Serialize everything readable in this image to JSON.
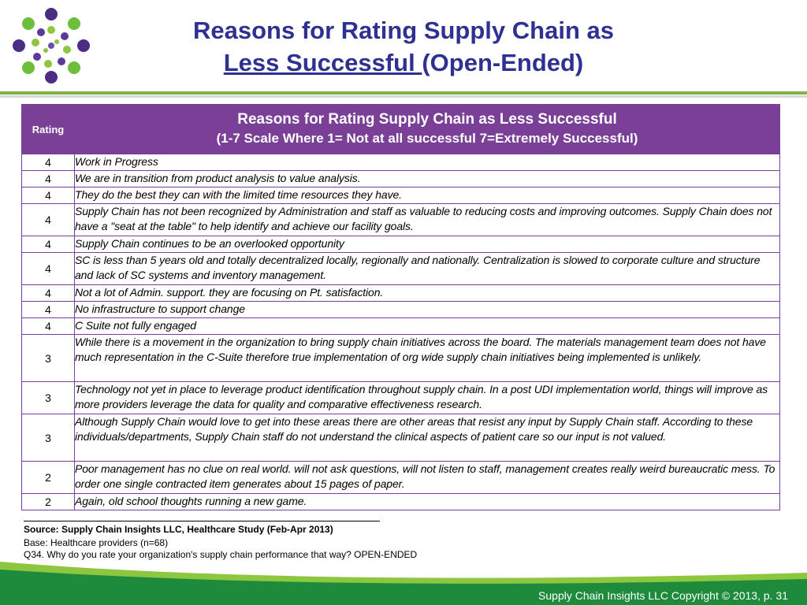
{
  "title": {
    "line1": "Reasons for Rating Supply Chain as",
    "line2_underlined": "Less Successful ",
    "line2_rest": "(Open-Ended)"
  },
  "table": {
    "header_rating": "Rating",
    "header_title": "Reasons for Rating Supply Chain as Less Successful",
    "header_subtitle": "(1-7 Scale Where 1= Not at all successful 7=Extremely Successful)",
    "rows": [
      {
        "rating": "4",
        "text": "Work in Progress"
      },
      {
        "rating": "4",
        "text": "We are in transition from product analysis to value analysis."
      },
      {
        "rating": "4",
        "text": "They do the best they can with the limited time resources they have."
      },
      {
        "rating": "4",
        "text": "Supply Chain has not been recognized by Administration and staff as valuable to reducing costs and improving outcomes. Supply Chain does not have a \"seat at the table\" to help identify and achieve our facility goals."
      },
      {
        "rating": "4",
        "text": "Supply Chain continues to be an overlooked opportunity"
      },
      {
        "rating": "4",
        "text": "SC is less than 5 years old and totally decentralized locally, regionally and nationally.  Centralization is slowed to corporate culture and structure and lack of SC systems and inventory management."
      },
      {
        "rating": "4",
        "text": "Not a lot of Admin. support.  they are focusing on Pt. satisfaction."
      },
      {
        "rating": "4",
        "text": "No infrastructure to support change"
      },
      {
        "rating": "4",
        "text": "C Suite not fully engaged"
      },
      {
        "rating": "3",
        "text": "While there is a movement in the organization to bring supply chain initiatives across the board. The materials management team does not have much representation in the C-Suite therefore true implementation of org wide supply chain initiatives being implemented is unlikely."
      },
      {
        "rating": "3",
        "text": "Technology not yet in place to leverage product identification throughout supply chain. In a post UDI implementation world, things will improve as more providers leverage the data for quality and comparative effectiveness research."
      },
      {
        "rating": "3",
        "text": "Although Supply Chain would love to get into these areas there are other areas that resist any input by Supply Chain staff. According to these individuals/departments, Supply Chain staff do not understand the clinical aspects of patient care so our input is not valued."
      },
      {
        "rating": "2",
        "text": "Poor management has no clue on real world.  will not ask questions, will not listen to staff, management creates really weird bureaucratic mess.  To order one single  contracted item generates about 15 pages of paper."
      },
      {
        "rating": "2",
        "text": "Again, old school thoughts running a new game."
      }
    ]
  },
  "source": {
    "line1": "Source:  Supply Chain Insights LLC, Healthcare Study (Feb-Apr 2013)",
    "line2": "Base:  Healthcare providers (n=68)",
    "line3": "Q34. Why do you rate your organization's supply chain performance that way? OPEN-ENDED"
  },
  "footer": {
    "copyright": "Supply Chain Insights LLC Copyright © 2013, p. 31"
  },
  "colors": {
    "title": "#2e3192",
    "header_purple": "#7a3f96",
    "accent_green": "#7cb342",
    "footer_green": "#1e8a3c"
  }
}
